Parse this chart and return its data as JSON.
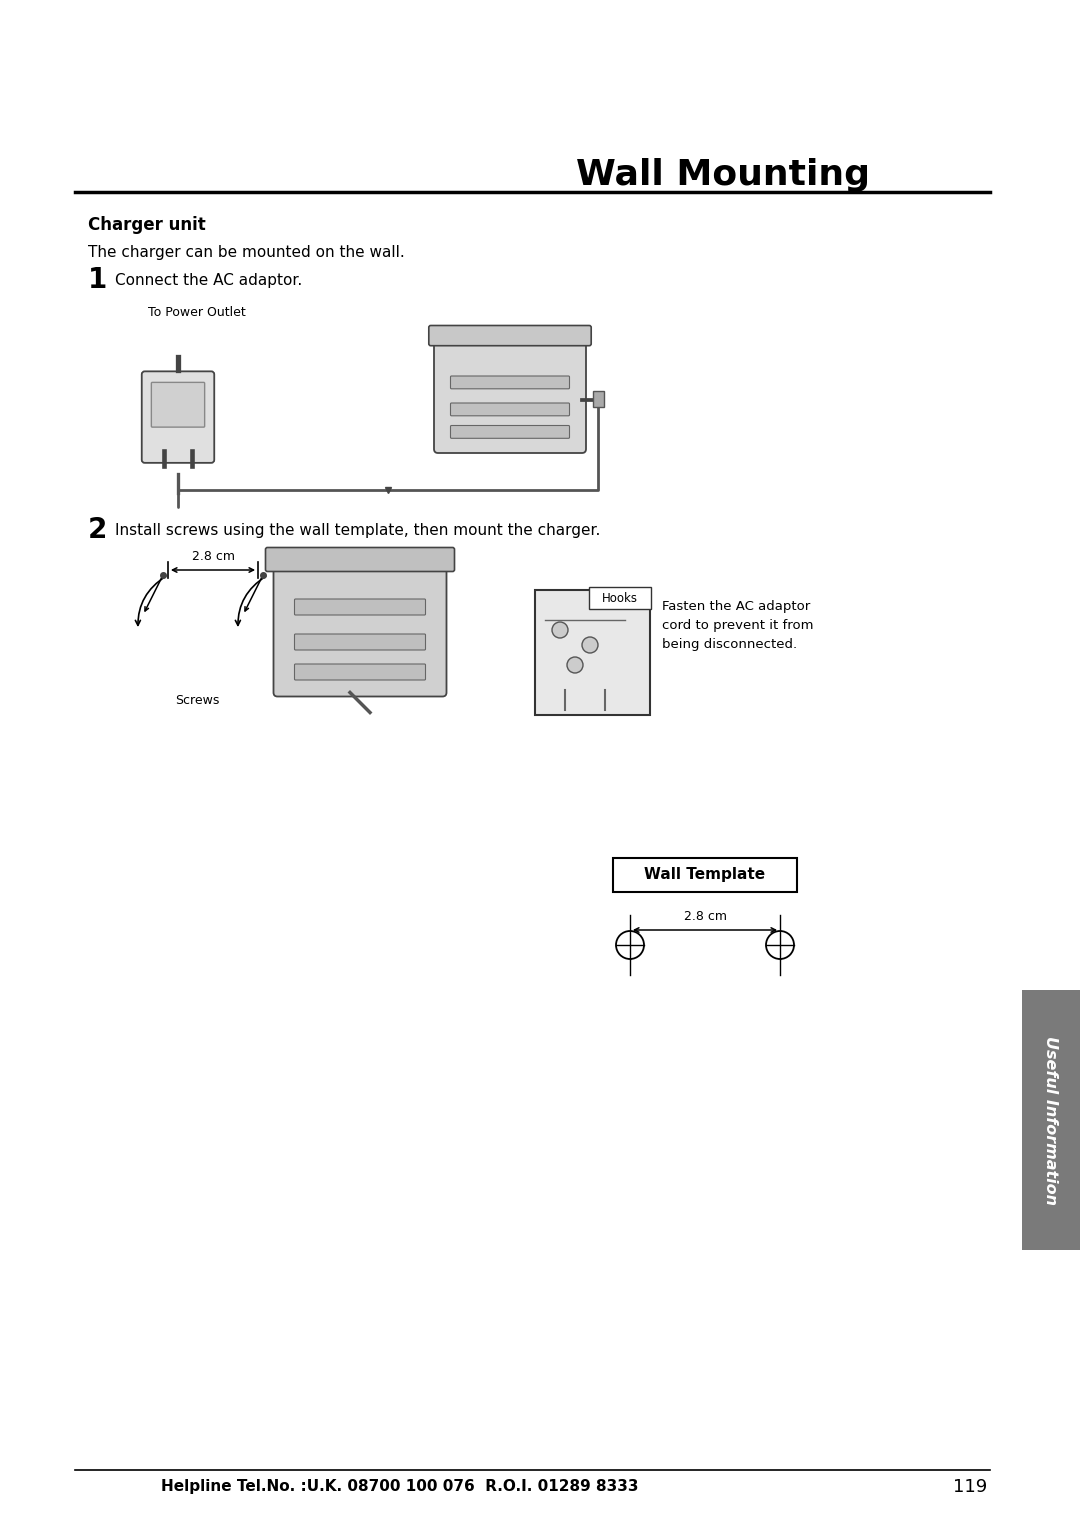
{
  "page_title": "Wall Mounting",
  "section_title": "Charger unit",
  "section_subtitle": "The charger can be mounted on the wall.",
  "step1_number": "1",
  "step1_text": "Connect the AC adaptor.",
  "step1_label": "To Power Outlet",
  "step2_number": "2",
  "step2_text": "Install screws using the wall template, then mount the charger.",
  "step2_dim": "2.8 cm",
  "step2_screws": "Screws",
  "step2_hooks": "Hooks",
  "step2_annotation": "Fasten the AC adaptor\ncord to prevent it from\nbeing disconnected.",
  "wall_template_title": "Wall Template",
  "wall_template_dim": "2.8 cm",
  "sidebar_text": "Useful Information",
  "footer_text": "Helpline Tel.No. :U.K. 08700 100 076  R.O.I. 01289 8333",
  "page_number": "119",
  "bg_color": "#ffffff",
  "text_color": "#000000",
  "sidebar_bg": "#7a7a7a",
  "sidebar_text_color": "#ffffff",
  "title_line_color": "#000000"
}
